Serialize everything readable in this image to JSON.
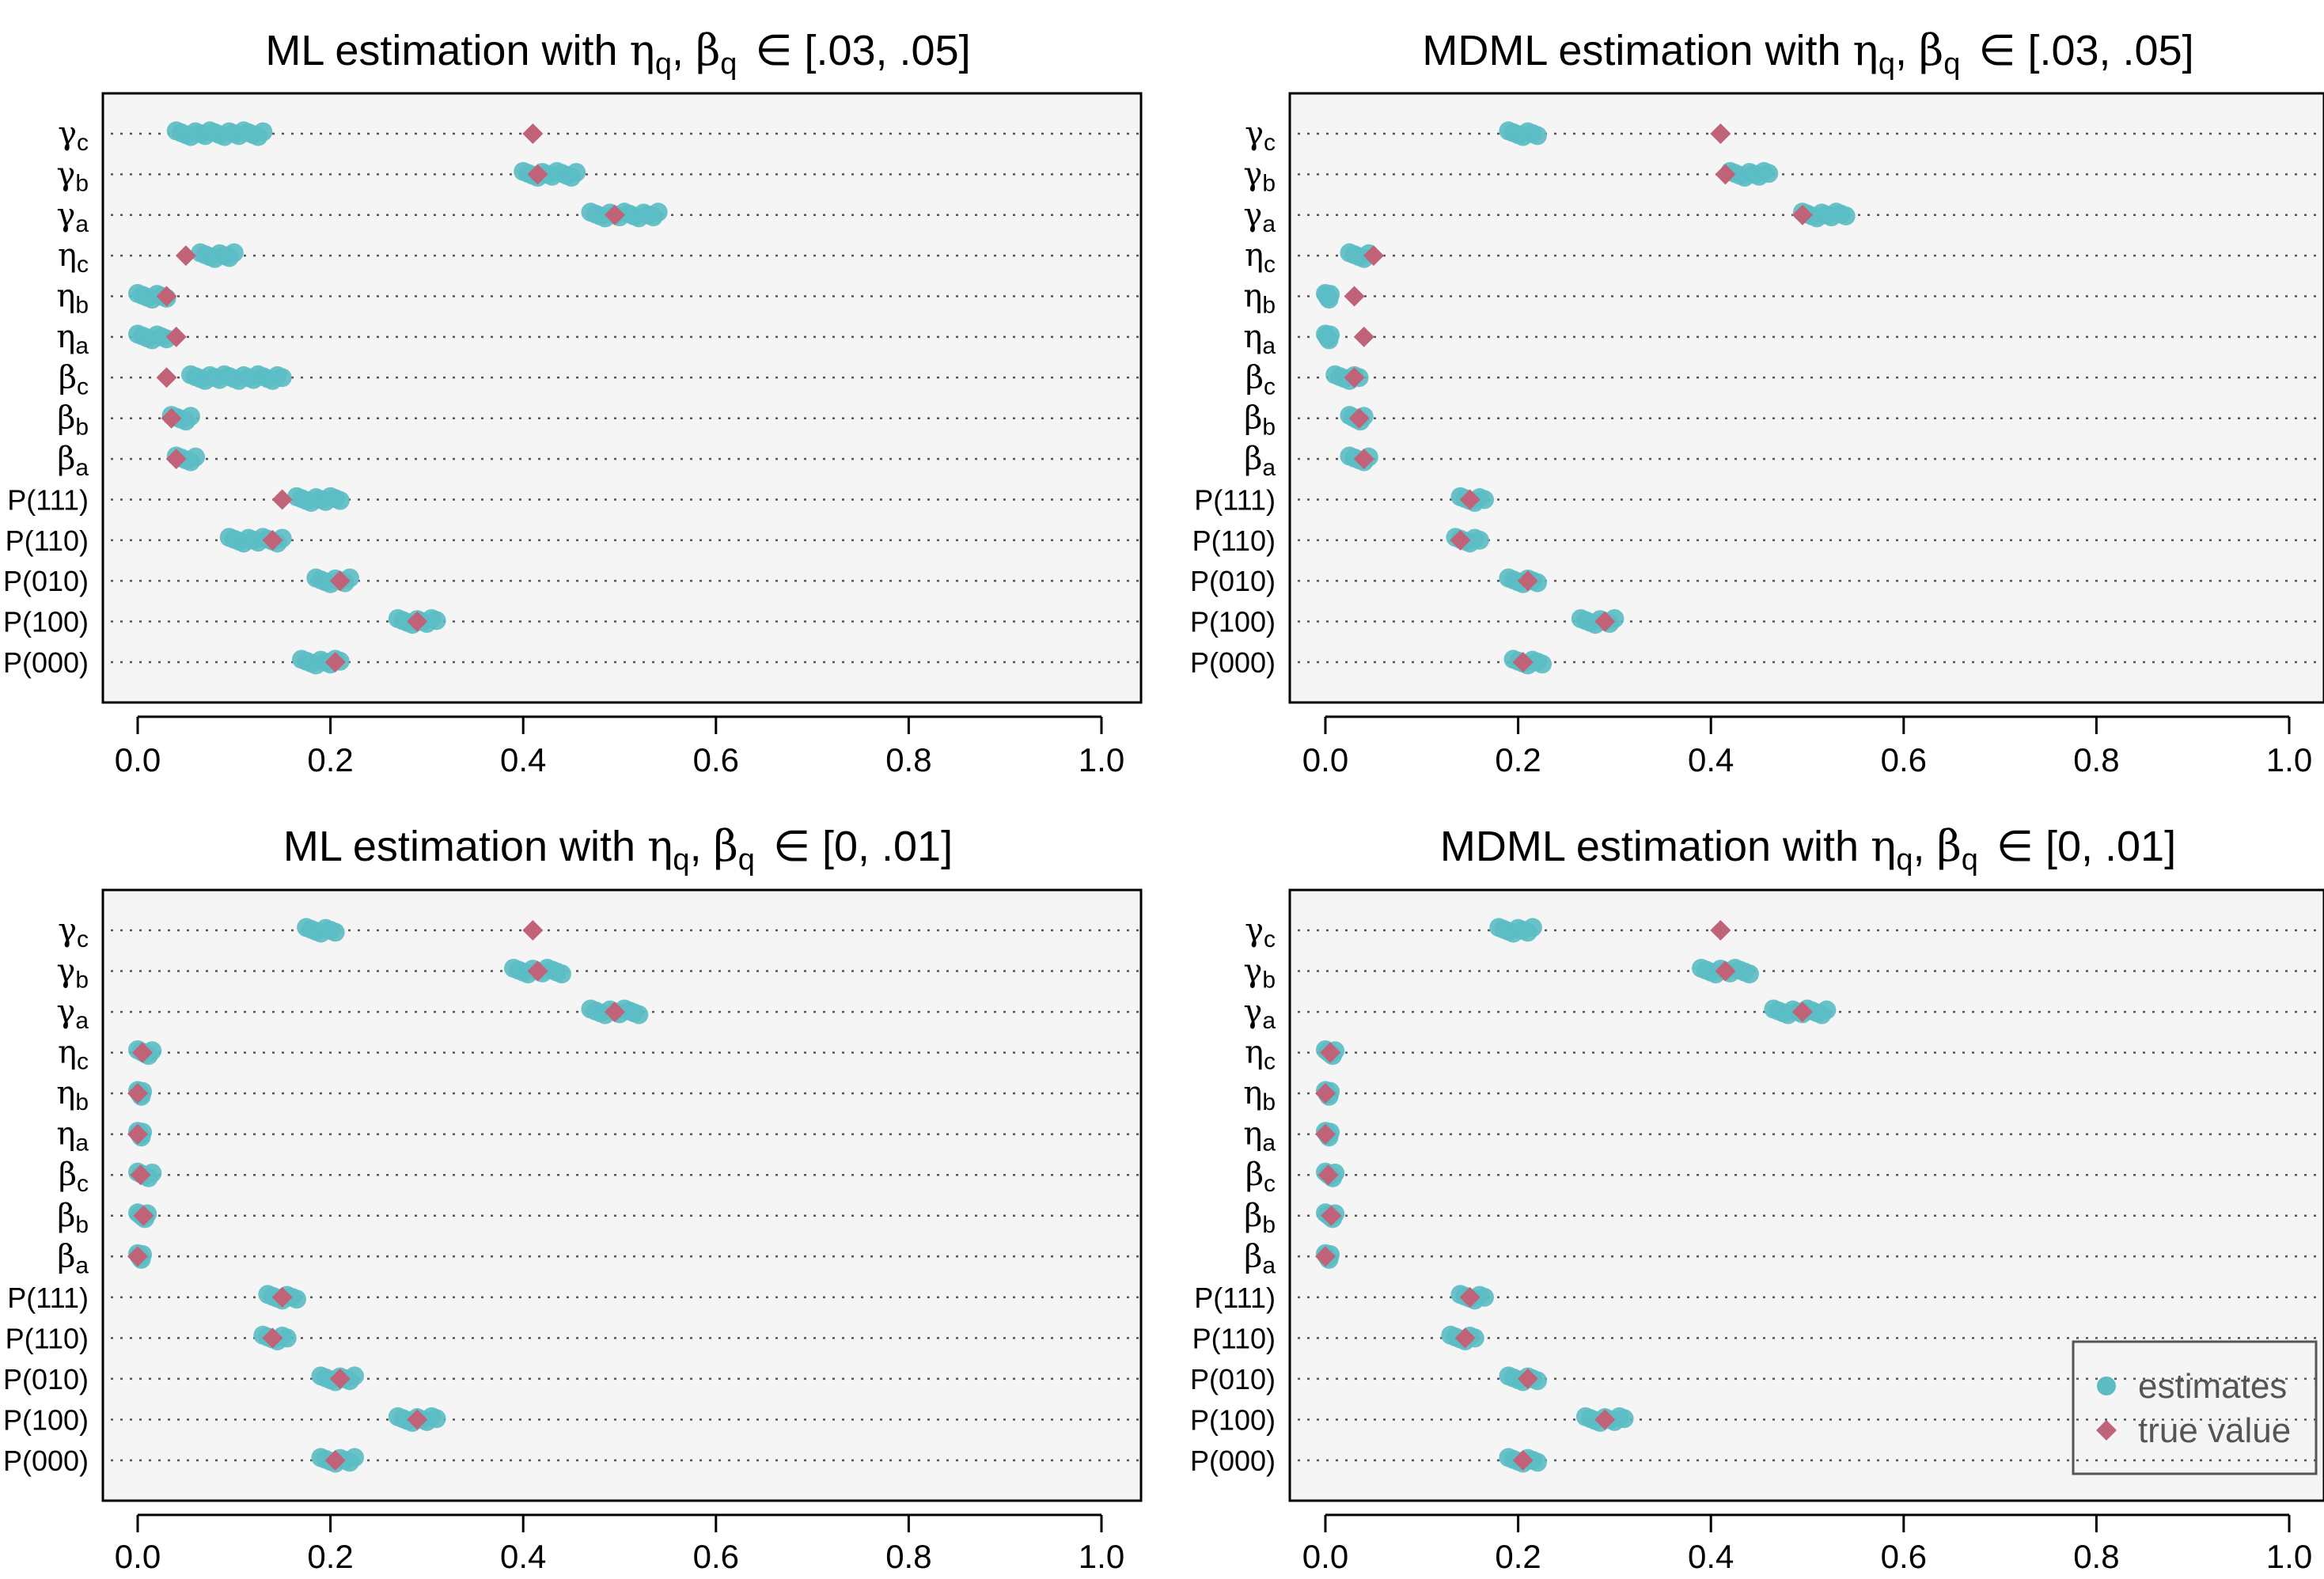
{
  "chart_data": [
    {
      "type": "scatter",
      "title": "ML estimation with ηq, βq ∈ [.03, .05]",
      "title_parts": {
        "prefix": "ML estimation with ",
        "eta": "η",
        "beta": "β",
        "sub": "q",
        "sep": ", ",
        "interval": "∈ [.03, .05]"
      },
      "xlim": [
        0,
        1
      ],
      "xticks": [
        "0.0",
        "0.2",
        "0.4",
        "0.6",
        "0.8",
        "1.0"
      ],
      "rows": [
        {
          "label": "γ",
          "sub": "c",
          "est_min": 0.04,
          "est_max": 0.13,
          "true": 0.41
        },
        {
          "label": "γ",
          "sub": "b",
          "est_min": 0.4,
          "est_max": 0.455,
          "true": 0.415
        },
        {
          "label": "γ",
          "sub": "a",
          "est_min": 0.47,
          "est_max": 0.54,
          "true": 0.495
        },
        {
          "label": "η",
          "sub": "c",
          "est_min": 0.065,
          "est_max": 0.1,
          "true": 0.05
        },
        {
          "label": "η",
          "sub": "b",
          "est_min": 0.0,
          "est_max": 0.03,
          "true": 0.03
        },
        {
          "label": "η",
          "sub": "a",
          "est_min": 0.0,
          "est_max": 0.03,
          "true": 0.04
        },
        {
          "label": "β",
          "sub": "c",
          "est_min": 0.055,
          "est_max": 0.15,
          "true": 0.03
        },
        {
          "label": "β",
          "sub": "b",
          "est_min": 0.035,
          "est_max": 0.055,
          "true": 0.035
        },
        {
          "label": "β",
          "sub": "a",
          "est_min": 0.04,
          "est_max": 0.06,
          "true": 0.04
        },
        {
          "label": "P(111)",
          "sub": "",
          "est_min": 0.165,
          "est_max": 0.21,
          "true": 0.15
        },
        {
          "label": "P(110)",
          "sub": "",
          "est_min": 0.095,
          "est_max": 0.15,
          "true": 0.14
        },
        {
          "label": "P(010)",
          "sub": "",
          "est_min": 0.185,
          "est_max": 0.22,
          "true": 0.21
        },
        {
          "label": "P(100)",
          "sub": "",
          "est_min": 0.27,
          "est_max": 0.31,
          "true": 0.29
        },
        {
          "label": "P(000)",
          "sub": "",
          "est_min": 0.17,
          "est_max": 0.21,
          "true": 0.205
        }
      ]
    },
    {
      "type": "scatter",
      "title": "MDML estimation with ηq, βq ∈ [.03, .05]",
      "title_parts": {
        "prefix": "MDML estimation with ",
        "eta": "η",
        "beta": "β",
        "sub": "q",
        "sep": ", ",
        "interval": "∈ [.03, .05]"
      },
      "xlim": [
        0,
        1
      ],
      "xticks": [
        "0.0",
        "0.2",
        "0.4",
        "0.6",
        "0.8",
        "1.0"
      ],
      "rows": [
        {
          "label": "γ",
          "sub": "c",
          "est_min": 0.19,
          "est_max": 0.22,
          "true": 0.41
        },
        {
          "label": "γ",
          "sub": "b",
          "est_min": 0.42,
          "est_max": 0.46,
          "true": 0.415
        },
        {
          "label": "γ",
          "sub": "a",
          "est_min": 0.495,
          "est_max": 0.54,
          "true": 0.495
        },
        {
          "label": "η",
          "sub": "c",
          "est_min": 0.025,
          "est_max": 0.045,
          "true": 0.05
        },
        {
          "label": "η",
          "sub": "b",
          "est_min": 0.0,
          "est_max": 0.005,
          "true": 0.03
        },
        {
          "label": "η",
          "sub": "a",
          "est_min": 0.0,
          "est_max": 0.005,
          "true": 0.04
        },
        {
          "label": "β",
          "sub": "c",
          "est_min": 0.01,
          "est_max": 0.035,
          "true": 0.03
        },
        {
          "label": "β",
          "sub": "b",
          "est_min": 0.025,
          "est_max": 0.04,
          "true": 0.035
        },
        {
          "label": "β",
          "sub": "a",
          "est_min": 0.025,
          "est_max": 0.045,
          "true": 0.04
        },
        {
          "label": "P(111)",
          "sub": "",
          "est_min": 0.14,
          "est_max": 0.165,
          "true": 0.15
        },
        {
          "label": "P(110)",
          "sub": "",
          "est_min": 0.135,
          "est_max": 0.16,
          "true": 0.14
        },
        {
          "label": "P(010)",
          "sub": "",
          "est_min": 0.19,
          "est_max": 0.22,
          "true": 0.21
        },
        {
          "label": "P(100)",
          "sub": "",
          "est_min": 0.265,
          "est_max": 0.3,
          "true": 0.29
        },
        {
          "label": "P(000)",
          "sub": "",
          "est_min": 0.195,
          "est_max": 0.225,
          "true": 0.205
        }
      ]
    },
    {
      "type": "scatter",
      "title": "ML estimation with ηq, βq ∈ [0, .01]",
      "title_parts": {
        "prefix": "ML estimation with ",
        "eta": "η",
        "beta": "β",
        "sub": "q",
        "sep": ", ",
        "interval": "∈ [0, .01]"
      },
      "xlim": [
        0,
        1
      ],
      "xticks": [
        "0.0",
        "0.2",
        "0.4",
        "0.6",
        "0.8",
        "1.0"
      ],
      "rows": [
        {
          "label": "γ",
          "sub": "c",
          "est_min": 0.175,
          "est_max": 0.205,
          "true": 0.41
        },
        {
          "label": "γ",
          "sub": "b",
          "est_min": 0.39,
          "est_max": 0.44,
          "true": 0.415
        },
        {
          "label": "γ",
          "sub": "a",
          "est_min": 0.47,
          "est_max": 0.52,
          "true": 0.495
        },
        {
          "label": "η",
          "sub": "c",
          "est_min": 0.0,
          "est_max": 0.015,
          "true": 0.005
        },
        {
          "label": "η",
          "sub": "b",
          "est_min": 0.0,
          "est_max": 0.005,
          "true": 0.0
        },
        {
          "label": "η",
          "sub": "a",
          "est_min": 0.0,
          "est_max": 0.005,
          "true": 0.0
        },
        {
          "label": "β",
          "sub": "c",
          "est_min": 0.0,
          "est_max": 0.015,
          "true": 0.003
        },
        {
          "label": "β",
          "sub": "b",
          "est_min": 0.0,
          "est_max": 0.01,
          "true": 0.006
        },
        {
          "label": "β",
          "sub": "a",
          "est_min": 0.0,
          "est_max": 0.005,
          "true": 0.0
        },
        {
          "label": "P(111)",
          "sub": "",
          "est_min": 0.135,
          "est_max": 0.165,
          "true": 0.15
        },
        {
          "label": "P(110)",
          "sub": "",
          "est_min": 0.13,
          "est_max": 0.155,
          "true": 0.14
        },
        {
          "label": "P(010)",
          "sub": "",
          "est_min": 0.19,
          "est_max": 0.225,
          "true": 0.21
        },
        {
          "label": "P(100)",
          "sub": "",
          "est_min": 0.27,
          "est_max": 0.31,
          "true": 0.29
        },
        {
          "label": "P(000)",
          "sub": "",
          "est_min": 0.19,
          "est_max": 0.225,
          "true": 0.205
        }
      ]
    },
    {
      "type": "scatter",
      "title": "MDML estimation with ηq, βq ∈ [0, .01]",
      "title_parts": {
        "prefix": "MDML estimation with ",
        "eta": "η",
        "beta": "β",
        "sub": "q",
        "sep": ", ",
        "interval": "∈ [0, .01]"
      },
      "xlim": [
        0,
        1
      ],
      "xticks": [
        "0.0",
        "0.2",
        "0.4",
        "0.6",
        "0.8",
        "1.0"
      ],
      "rows": [
        {
          "label": "γ",
          "sub": "c",
          "est_min": 0.18,
          "est_max": 0.215,
          "true": 0.41
        },
        {
          "label": "γ",
          "sub": "b",
          "est_min": 0.39,
          "est_max": 0.44,
          "true": 0.415
        },
        {
          "label": "γ",
          "sub": "a",
          "est_min": 0.465,
          "est_max": 0.52,
          "true": 0.495
        },
        {
          "label": "η",
          "sub": "c",
          "est_min": 0.0,
          "est_max": 0.01,
          "true": 0.005
        },
        {
          "label": "η",
          "sub": "b",
          "est_min": 0.0,
          "est_max": 0.005,
          "true": 0.0
        },
        {
          "label": "η",
          "sub": "a",
          "est_min": 0.0,
          "est_max": 0.005,
          "true": 0.0
        },
        {
          "label": "β",
          "sub": "c",
          "est_min": 0.0,
          "est_max": 0.01,
          "true": 0.003
        },
        {
          "label": "β",
          "sub": "b",
          "est_min": 0.0,
          "est_max": 0.01,
          "true": 0.006
        },
        {
          "label": "β",
          "sub": "a",
          "est_min": 0.0,
          "est_max": 0.005,
          "true": 0.0
        },
        {
          "label": "P(111)",
          "sub": "",
          "est_min": 0.14,
          "est_max": 0.165,
          "true": 0.15
        },
        {
          "label": "P(110)",
          "sub": "",
          "est_min": 0.13,
          "est_max": 0.155,
          "true": 0.145
        },
        {
          "label": "P(010)",
          "sub": "",
          "est_min": 0.19,
          "est_max": 0.22,
          "true": 0.21
        },
        {
          "label": "P(100)",
          "sub": "",
          "est_min": 0.27,
          "est_max": 0.31,
          "true": 0.29
        },
        {
          "label": "P(000)",
          "sub": "",
          "est_min": 0.19,
          "est_max": 0.22,
          "true": 0.205
        }
      ]
    }
  ],
  "legend": {
    "placement": "bottom-right",
    "entries": [
      {
        "label": "estimates",
        "color": "#5bbcc4",
        "shape": "circle"
      },
      {
        "label": "true value",
        "color": "#c06378",
        "shape": "diamond"
      }
    ]
  },
  "colors": {
    "estimates": "#5bbcc4",
    "true_value": "#c06378",
    "panel_bg": "#f5f5f5",
    "gridline": "#555555"
  }
}
